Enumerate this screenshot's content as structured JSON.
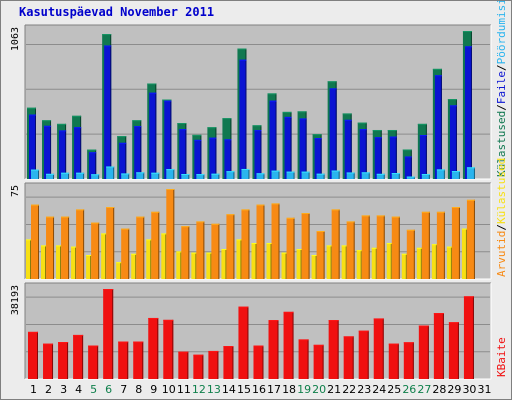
{
  "chart_data": {
    "type": "bar",
    "title": "Kasutuspäevad November 2011",
    "x": [
      "1",
      "2",
      "3",
      "4",
      "5",
      "6",
      "7",
      "8",
      "9",
      "10",
      "11",
      "12",
      "13",
      "14",
      "15",
      "16",
      "17",
      "18",
      "19",
      "20",
      "21",
      "22",
      "23",
      "24",
      "25",
      "26",
      "27",
      "28",
      "29",
      "30",
      "31"
    ],
    "weekend_days": [
      "5",
      "6",
      "12",
      "13",
      "19",
      "20",
      "26",
      "27"
    ],
    "panels": [
      {
        "scale_label": "1063",
        "ylim": [
          0,
          1063
        ],
        "grid": true,
        "series": [
          {
            "name": "Külastused",
            "color": "#107850",
            "values": [
              512,
              422,
              396,
              454,
              211,
              1041,
              308,
              422,
              686,
              571,
              402,
              317,
              372,
              437,
              937,
              386,
              615,
              482,
              486,
              322,
              702,
              471,
              405,
              352,
              352,
              212,
              396,
              791,
              574,
              1063,
              null
            ]
          },
          {
            "name": "Failid",
            "color": "#0a14d2",
            "values": [
              463,
              382,
              349,
              372,
              192,
              959,
              260,
              380,
              620,
              563,
              358,
              281,
              297,
              285,
              857,
              351,
              563,
              446,
              435,
              294,
              651,
              425,
              358,
              300,
              305,
              162,
              316,
              745,
              529,
              953,
              null
            ]
          },
          {
            "name": "Pöördumisi",
            "color": "#2ab4ee",
            "values": [
              68,
              37,
              45,
              45,
              34,
              90,
              40,
              48,
              45,
              71,
              36,
              35,
              38,
              56,
              72,
              41,
              60,
              53,
              53,
              38,
              61,
              47,
              48,
              37,
              43,
              18,
              36,
              69,
              57,
              84,
              null
            ]
          }
        ]
      },
      {
        "scale_label": "75",
        "ylim": [
          0,
          75
        ],
        "grid": true,
        "series": [
          {
            "name": "Arvutid",
            "color": "#f78a14",
            "values": [
              62,
              52,
              52,
              58,
              47,
              60,
              42,
              52,
              56,
              75,
              44,
              48,
              46,
              54,
              58,
              62,
              63,
              51,
              55,
              40,
              58,
              48,
              53,
              53,
              52,
              41,
              56,
              56,
              60,
              66,
              null
            ]
          },
          {
            "name": "Külastused",
            "color": "#f7e014",
            "values": [
              33,
              28,
              28,
              27,
              20,
              38,
              14,
              21,
              33,
              38,
              23,
              22,
              22,
              25,
              33,
              30,
              30,
              22,
              25,
              20,
              28,
              28,
              24,
              26,
              30,
              21,
              26,
              29,
              27,
              42,
              null
            ]
          }
        ]
      },
      {
        "scale_label": "38193",
        "ylim": [
          0,
          38193
        ],
        "grid": true,
        "series": [
          {
            "name": "KBaite",
            "color": "#f01010",
            "values": [
              20000,
              15000,
              15700,
              18700,
              14200,
              38193,
              15900,
              15900,
              25900,
              25100,
              11600,
              10300,
              11900,
              14000,
              30700,
              14200,
              25000,
              28500,
              16800,
              14500,
              25000,
              18100,
              20500,
              25700,
              15000,
              15600,
              22700,
              28000,
              24100,
              35100,
              null
            ]
          }
        ]
      }
    ]
  },
  "legend": {
    "panel1": [
      "Külastused",
      "/",
      "Faile",
      "/",
      "Pöördumisi"
    ],
    "panel2": [
      "Arvutid",
      "/",
      "Külastused"
    ],
    "panel3": [
      "KBaite"
    ]
  },
  "colors": {
    "weekday_label": "#000000",
    "weekend_label": "#10804c",
    "panel_bg": "#c0c0c0",
    "slash": "#000000"
  }
}
